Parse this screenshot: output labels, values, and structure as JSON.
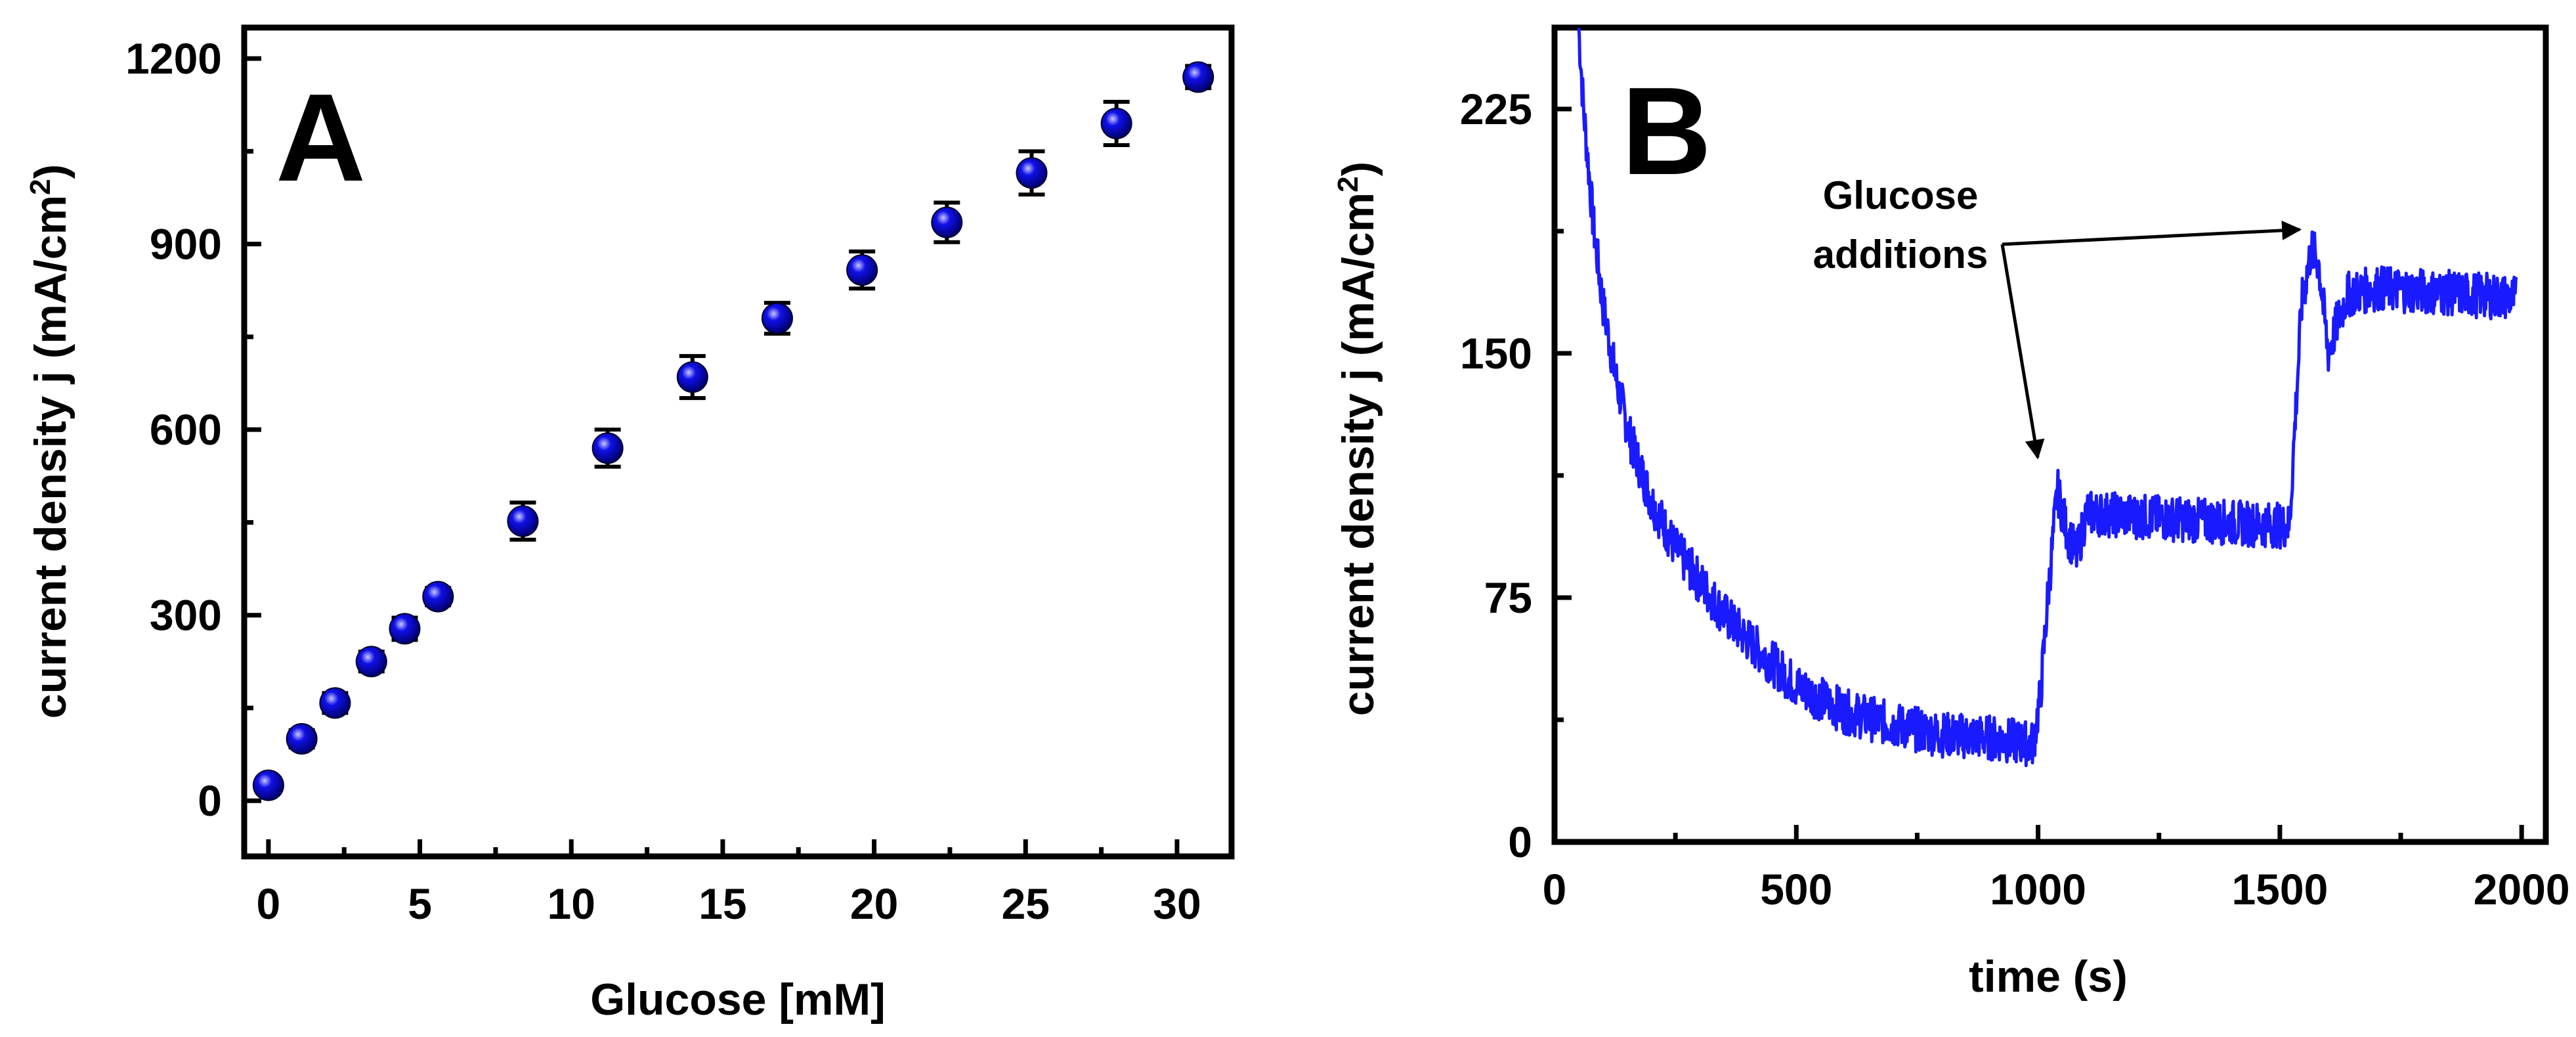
{
  "chart_data": [
    {
      "type": "scatter",
      "panel_label": "A",
      "xlabel": "Glucose [mM]",
      "ylabel_main": "current density j (mA/cm",
      "ylabel_sup": "2",
      "ylabel_close": ")",
      "xlim": [
        -0.8,
        31.8
      ],
      "ylim": [
        -90,
        1250
      ],
      "xticks": [
        0,
        5,
        10,
        15,
        20,
        25,
        30
      ],
      "yticks": [
        0,
        300,
        600,
        900,
        1200
      ],
      "xtick_labels": [
        "0",
        "5",
        "10",
        "15",
        "20",
        "25",
        "30"
      ],
      "ytick_labels": [
        "0",
        "300",
        "600",
        "900",
        "1200"
      ],
      "series": [
        {
          "name": "current density",
          "color": "#1010e8",
          "x": [
            0.0,
            1.1,
            2.2,
            3.4,
            4.5,
            5.6,
            8.4,
            11.2,
            14.0,
            16.8,
            19.6,
            22.4,
            25.2,
            28.0,
            30.7
          ],
          "y": [
            25,
            100,
            158,
            225,
            278,
            330,
            452,
            570,
            685,
            780,
            858,
            935,
            1015,
            1095,
            1170
          ],
          "err": [
            12,
            14,
            16,
            16,
            18,
            14,
            30,
            30,
            34,
            25,
            30,
            32,
            35,
            35,
            18
          ]
        }
      ]
    },
    {
      "type": "line",
      "panel_label": "B",
      "xlabel": "time (s)",
      "ylabel_main": "current density j (mA/cm",
      "ylabel_sup": "2",
      "ylabel_close": ")",
      "xlim": [
        0,
        2050
      ],
      "ylim": [
        0,
        250
      ],
      "xticks": [
        0,
        500,
        1000,
        1500,
        2000
      ],
      "yticks": [
        0,
        75,
        150,
        225
      ],
      "xtick_labels": [
        "0",
        "500",
        "1000",
        "1500",
        "2000"
      ],
      "ytick_labels": [
        "0",
        "75",
        "150",
        "225"
      ],
      "annotation_line1": "Glucose",
      "annotation_line2": "additions",
      "annotation_targets_t": [
        1040,
        1575
      ],
      "series": [
        {
          "name": "current density",
          "color": "#1a1aff",
          "band_noise": 7,
          "t": [
            50,
            60,
            80,
            100,
            130,
            160,
            200,
            250,
            300,
            350,
            400,
            450,
            500,
            600,
            700,
            800,
            900,
            990,
            1005,
            1020,
            1040,
            1060,
            1080,
            1100,
            1200,
            1300,
            1400,
            1520,
            1530,
            1545,
            1565,
            1580,
            1600,
            1620,
            1640,
            1700,
            1800,
            1900,
            1990
          ],
          "j": [
            250,
            225,
            190,
            165,
            140,
            122,
            105,
            90,
            80,
            70,
            62,
            55,
            48,
            40,
            36,
            33,
            32,
            30,
            45,
            75,
            108,
            95,
            88,
            101,
            100,
            99,
            98,
            97,
            125,
            165,
            182,
            178,
            150,
            160,
            168,
            170,
            169,
            168,
            167
          ]
        }
      ]
    }
  ]
}
